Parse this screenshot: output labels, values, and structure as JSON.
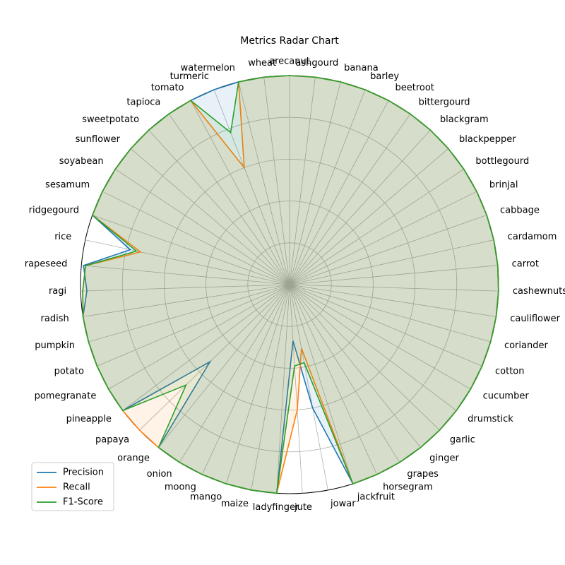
{
  "chart_data": {
    "type": "radar",
    "title": "Metrics Radar Chart",
    "categories": [
      "arecanut",
      "ashgourd",
      "banana",
      "barley",
      "beetroot",
      "bittergourd",
      "blackgram",
      "blackpepper",
      "bottlegourd",
      "brinjal",
      "cabbage",
      "cardamom",
      "carrot",
      "cashewnuts",
      "cauliflower",
      "coriander",
      "cotton",
      "cucumber",
      "drumstick",
      "garlic",
      "ginger",
      "grapes",
      "horsegram",
      "jackfruit",
      "jowar",
      "jute",
      "ladyfinger",
      "maize",
      "mango",
      "moong",
      "onion",
      "orange",
      "papaya",
      "pineapple",
      "pomegranate",
      "potato",
      "pumpkin",
      "radish",
      "ragi",
      "rapeseed",
      "rice",
      "ridgegourd",
      "sesamum",
      "soyabean",
      "sunflower",
      "sweetpotato",
      "tapioca",
      "tomato",
      "turmeric",
      "watermelon",
      "wheat"
    ],
    "rlim": [
      0,
      1.0
    ],
    "grid_levels": [
      0.2,
      0.4,
      0.6,
      0.8,
      1.0
    ],
    "legend_position": "lower-left",
    "series": [
      {
        "name": "Precision",
        "color": "#1f77b4",
        "values": [
          1.0,
          1.0,
          1.0,
          1.0,
          1.0,
          1.0,
          1.0,
          1.0,
          1.0,
          1.0,
          1.0,
          1.0,
          1.0,
          1.0,
          1.0,
          1.0,
          1.0,
          1.0,
          1.0,
          1.0,
          1.0,
          1.0,
          1.0,
          1.0,
          0.6,
          0.27,
          1.0,
          1.0,
          1.0,
          1.0,
          1.0,
          1.0,
          0.53,
          1.0,
          1.0,
          1.0,
          1.0,
          1.0,
          0.97,
          0.99,
          0.78,
          1.0,
          1.0,
          1.0,
          1.0,
          1.0,
          1.0,
          1.0,
          1.0,
          1.0,
          1.0
        ]
      },
      {
        "name": "Recall",
        "color": "#ff7f0e",
        "values": [
          1.0,
          1.0,
          1.0,
          1.0,
          1.0,
          1.0,
          1.0,
          1.0,
          1.0,
          1.0,
          1.0,
          1.0,
          1.0,
          1.0,
          1.0,
          1.0,
          1.0,
          1.0,
          1.0,
          1.0,
          1.0,
          1.0,
          1.0,
          1.0,
          0.31,
          0.6,
          1.0,
          1.0,
          1.0,
          1.0,
          1.0,
          1.0,
          1.0,
          1.0,
          1.0,
          1.0,
          1.0,
          1.0,
          0.99,
          0.98,
          0.73,
          1.0,
          1.0,
          1.0,
          1.0,
          1.0,
          1.0,
          1.0,
          0.6,
          1.0,
          1.0
        ]
      },
      {
        "name": "F1-Score",
        "color": "#2ca02c",
        "values": [
          1.0,
          1.0,
          1.0,
          1.0,
          1.0,
          1.0,
          1.0,
          1.0,
          1.0,
          1.0,
          1.0,
          1.0,
          1.0,
          1.0,
          1.0,
          1.0,
          1.0,
          1.0,
          1.0,
          1.0,
          1.0,
          1.0,
          1.0,
          1.0,
          0.38,
          0.39,
          1.0,
          1.0,
          1.0,
          1.0,
          1.0,
          1.0,
          0.69,
          1.0,
          1.0,
          1.0,
          1.0,
          1.0,
          0.99,
          0.98,
          0.75,
          1.0,
          1.0,
          1.0,
          1.0,
          1.0,
          1.0,
          1.0,
          0.78,
          1.0,
          1.0
        ]
      }
    ]
  }
}
